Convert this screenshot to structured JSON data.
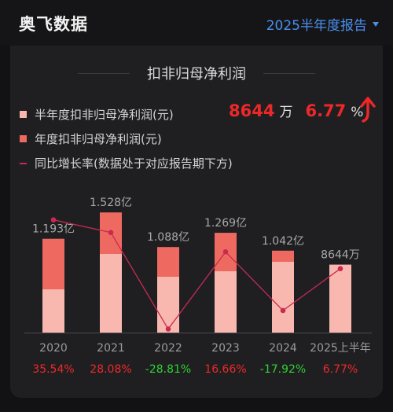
{
  "header": {
    "app_title": "奥飞数据",
    "report_period": "2025半年度报告"
  },
  "card": {
    "title": "扣非归母净利润",
    "legend": [
      {
        "label": "半年度扣非归母净利润(元)",
        "color": "#f8b8b0"
      },
      {
        "label": "年度扣非归母净利润(元)",
        "color": "#ee6a60"
      },
      {
        "label": "同比增长率(数据处于对应报告期下方)",
        "color": "#c92a50"
      }
    ],
    "summary": {
      "value": "8644",
      "value_unit": "万",
      "growth": "6.77",
      "growth_unit": "%",
      "trend_icon": "arrow-up-icon"
    }
  },
  "colors": {
    "half_year": "#f8b8b0",
    "annual": "#ee6a60",
    "growth_line": "#c92a50",
    "positive": "#ee2828",
    "negative": "#2ed12e"
  },
  "chart_data": {
    "type": "bar",
    "categories": [
      "2020",
      "2021",
      "2022",
      "2023",
      "2024",
      "2025上半年"
    ],
    "series": [
      {
        "name": "半年度扣非归母净利润(元)",
        "values": [
          0.55,
          1.0,
          0.71,
          0.78,
          0.9,
          0.8644
        ]
      },
      {
        "name": "年度扣非归母净利润(元)",
        "values": [
          1.193,
          1.528,
          1.088,
          1.269,
          1.042,
          null
        ]
      },
      {
        "name": "同比增长率(数据处于对应报告期下方)",
        "values": [
          35.54,
          28.08,
          -28.81,
          16.66,
          -17.92,
          6.77
        ]
      }
    ],
    "value_labels": [
      "1.193亿",
      "1.528亿",
      "1.088亿",
      "1.269亿",
      "1.042亿",
      "8644万"
    ],
    "growth_labels": [
      "35.54%",
      "28.08%",
      "-28.81%",
      "16.66%",
      "-17.92%",
      "6.77%"
    ],
    "unit": "亿",
    "ylim": [
      0,
      1.7
    ],
    "growth_range": [
      -30,
      40
    ],
    "grid": false,
    "legend_position": "top-left"
  }
}
